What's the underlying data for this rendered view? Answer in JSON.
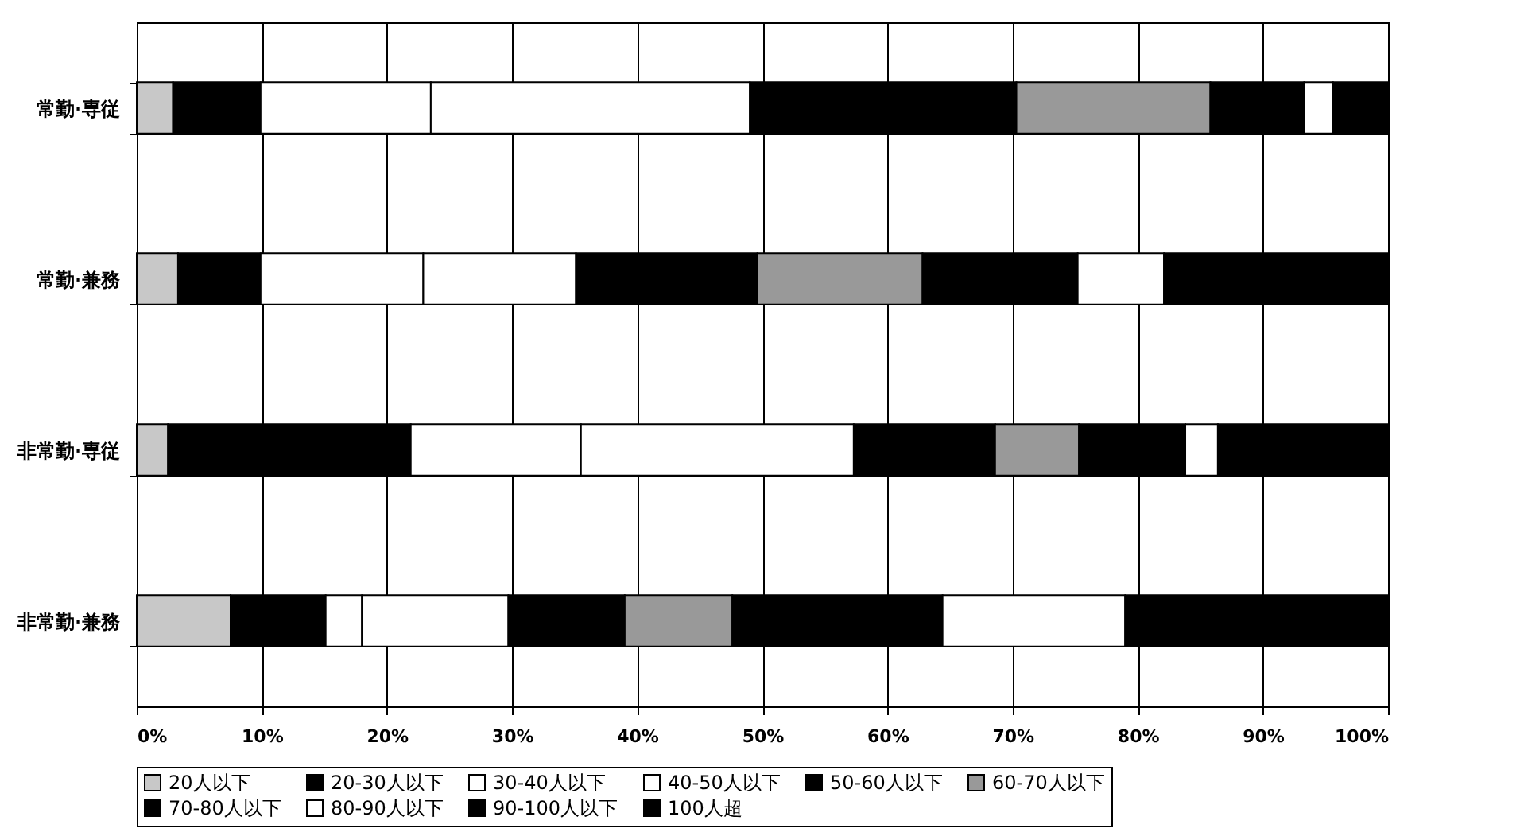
{
  "chart_data": {
    "type": "bar",
    "orientation": "horizontal",
    "stacked": true,
    "categories": [
      "常勤·専従",
      "常勤·兼務",
      "非常勤·専従",
      "非常勤·兼務"
    ],
    "series": [
      {
        "name": "20人以下",
        "color": "#c8c8c8",
        "values": [
          2.9,
          3.3,
          2.5,
          7.5
        ]
      },
      {
        "name": "20-30人以下",
        "color": "#000000",
        "values": [
          7.0,
          6.6,
          19.4,
          7.6
        ]
      },
      {
        "name": "30-40人以下",
        "color": "#ffffff",
        "values": [
          13.6,
          13.0,
          13.6,
          2.9
        ]
      },
      {
        "name": "40-50人以下",
        "color": "#ffffff",
        "values": [
          25.5,
          12.2,
          21.8,
          11.7
        ]
      },
      {
        "name": "50-60人以下",
        "color": "#000000",
        "values": [
          21.3,
          14.5,
          11.3,
          9.3
        ]
      },
      {
        "name": "60-70人以下",
        "color": "#999999",
        "values": [
          15.5,
          13.2,
          6.7,
          8.6
        ]
      },
      {
        "name": "70-80人以下",
        "color": "#000000",
        "values": [
          7.5,
          12.4,
          8.5,
          16.8
        ]
      },
      {
        "name": "80-90人以下",
        "color": "#ffffff",
        "values": [
          2.3,
          6.9,
          2.6,
          14.6
        ]
      },
      {
        "name": "90-100人以下",
        "color": "#000000",
        "values": [
          0,
          0,
          0,
          0
        ]
      },
      {
        "name": "100人超",
        "color": "#000000",
        "values": [
          4.4,
          17.9,
          13.6,
          21.0
        ]
      }
    ],
    "xlim": [
      0,
      100
    ],
    "xticks": [
      {
        "value": 0,
        "label": "0%"
      },
      {
        "value": 10,
        "label": "10%"
      },
      {
        "value": 20,
        "label": "20%"
      },
      {
        "value": 30,
        "label": "30%"
      },
      {
        "value": 40,
        "label": "40%"
      },
      {
        "value": 50,
        "label": "50%"
      },
      {
        "value": 60,
        "label": "60%"
      },
      {
        "value": 70,
        "label": "70%"
      },
      {
        "value": 80,
        "label": "80%"
      },
      {
        "value": 90,
        "label": "90%"
      },
      {
        "value": 100,
        "label": "100%"
      }
    ],
    "grid": true,
    "legend": "bottom"
  }
}
